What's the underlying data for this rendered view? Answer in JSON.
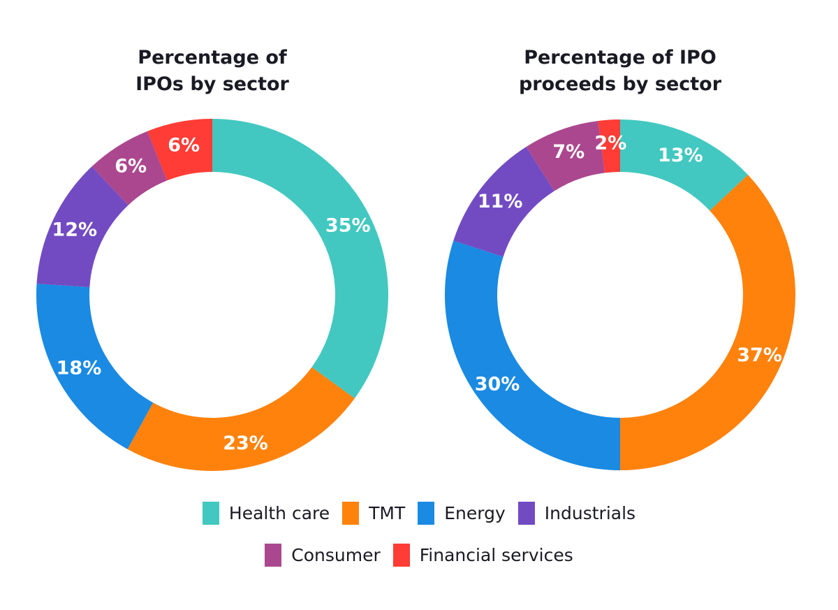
{
  "chart_data": [
    {
      "type": "pie",
      "variant": "donut",
      "title": "Percentage of IPOs by sector",
      "title_lines": [
        "Percentage of",
        "IPOs by sector"
      ],
      "start": "top",
      "direction": "clockwise",
      "slices": [
        {
          "label": "Health care",
          "value": 35,
          "display": "35%"
        },
        {
          "label": "TMT",
          "value": 23,
          "display": "23%"
        },
        {
          "label": "Energy",
          "value": 18,
          "display": "18%"
        },
        {
          "label": "Industrials",
          "value": 12,
          "display": "12%"
        },
        {
          "label": "Consumer",
          "value": 6,
          "display": "6%"
        },
        {
          "label": "Financial services",
          "value": 6,
          "display": "6%"
        }
      ]
    },
    {
      "type": "pie",
      "variant": "donut",
      "title": "Percentage of IPO proceeds by sector",
      "title_lines": [
        "Percentage of IPO",
        "proceeds by sector"
      ],
      "start": "top",
      "direction": "clockwise",
      "slices": [
        {
          "label": "Health care",
          "value": 13,
          "display": "13%"
        },
        {
          "label": "TMT",
          "value": 37,
          "display": "37%"
        },
        {
          "label": "Energy",
          "value": 30,
          "display": "30%"
        },
        {
          "label": "Industrials",
          "value": 11,
          "display": "11%"
        },
        {
          "label": "Consumer",
          "value": 7,
          "display": "7%"
        },
        {
          "label": "Financial services",
          "value": 2,
          "display": "2%"
        }
      ]
    }
  ],
  "legend": {
    "rows": [
      [
        {
          "label": "Health care",
          "color": "#42C8C0"
        },
        {
          "label": "TMT",
          "color": "#FF820D"
        },
        {
          "label": "Energy",
          "color": "#1A8AE3"
        },
        {
          "label": "Industrials",
          "color": "#724BC3"
        }
      ],
      [
        {
          "label": "Consumer",
          "color": "#AB478F"
        },
        {
          "label": "Financial services",
          "color": "#FF3C35"
        }
      ]
    ]
  },
  "sector_colors": {
    "Health care": "#42C8C0",
    "TMT": "#FF820D",
    "Energy": "#1A8AE3",
    "Industrials": "#724BC3",
    "Consumer": "#AB478F",
    "Financial services": "#FF3C35"
  }
}
